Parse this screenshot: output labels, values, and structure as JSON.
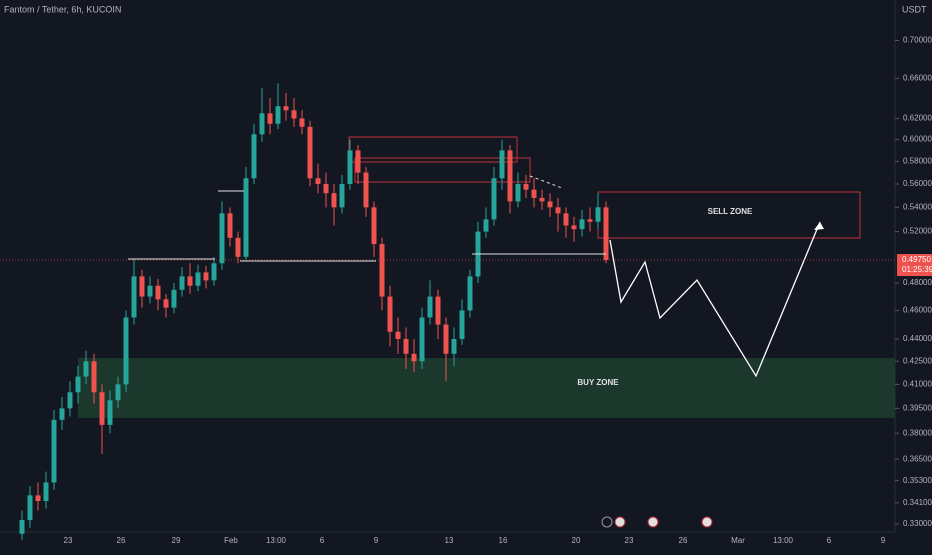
{
  "chart_data": {
    "type": "candlestick",
    "title": "Fantom / Tether, 6h, KUCOIN",
    "y_unit": "USDT",
    "log": true,
    "colors": {
      "up": "#26a69a",
      "down": "#ef5350"
    },
    "ylim": [
      0.3259,
      0.7455
    ],
    "yticks": [
      {
        "value": 0.33,
        "label": "0.33000"
      },
      {
        "value": 0.341,
        "label": "0.34100"
      },
      {
        "value": 0.353,
        "label": "0.35300"
      },
      {
        "value": 0.365,
        "label": "0.36500"
      },
      {
        "value": 0.38,
        "label": "0.38000"
      },
      {
        "value": 0.395,
        "label": "0.39500"
      },
      {
        "value": 0.41,
        "label": "0.41000"
      },
      {
        "value": 0.425,
        "label": "0.42500"
      },
      {
        "value": 0.44,
        "label": "0.44000"
      },
      {
        "value": 0.46,
        "label": "0.46000"
      },
      {
        "value": 0.48,
        "label": "0.48000"
      },
      {
        "value": 0.52,
        "label": "0.52000"
      },
      {
        "value": 0.54,
        "label": "0.54000"
      },
      {
        "value": 0.56,
        "label": "0.56000"
      },
      {
        "value": 0.58,
        "label": "0.58000"
      },
      {
        "value": 0.6,
        "label": "0.60000"
      },
      {
        "value": 0.62,
        "label": "0.62000"
      },
      {
        "value": 0.66,
        "label": "0.66000"
      },
      {
        "value": 0.7,
        "label": "0.70000"
      }
    ],
    "x_labels": [
      "23",
      "26",
      "29",
      "Feb",
      "13:00",
      "6",
      "9",
      "13",
      "16",
      "20",
      "23",
      "26",
      "Mar",
      "13:00",
      "6",
      "9"
    ],
    "open": [
      0.325,
      0.332,
      0.345,
      0.342,
      0.352,
      0.388,
      0.395,
      0.405,
      0.415,
      0.425,
      0.405,
      0.385,
      0.4,
      0.41,
      0.455,
      0.485,
      0.47,
      0.478,
      0.468,
      0.462,
      0.475,
      0.485,
      0.478,
      0.488,
      0.482,
      0.495,
      0.535,
      0.515,
      0.5,
      0.565,
      0.605,
      0.625,
      0.615,
      0.632,
      0.628,
      0.62,
      0.612,
      0.565,
      0.56,
      0.552,
      0.54,
      0.56,
      0.59,
      0.57,
      0.54,
      0.51,
      0.47,
      0.445,
      0.44,
      0.43,
      0.425,
      0.455,
      0.47,
      0.45,
      0.43,
      0.44,
      0.46,
      0.485,
      0.52,
      0.53,
      0.565,
      0.59,
      0.545,
      0.56,
      0.555,
      0.548,
      0.545,
      0.54,
      0.535,
      0.525,
      0.522,
      0.53,
      0.528,
      0.54
    ],
    "high": [
      0.337,
      0.35,
      0.352,
      0.358,
      0.394,
      0.402,
      0.412,
      0.422,
      0.432,
      0.43,
      0.41,
      0.406,
      0.415,
      0.46,
      0.498,
      0.49,
      0.485,
      0.483,
      0.472,
      0.48,
      0.492,
      0.495,
      0.494,
      0.493,
      0.5,
      0.545,
      0.54,
      0.52,
      0.575,
      0.615,
      0.65,
      0.64,
      0.655,
      0.645,
      0.64,
      0.628,
      0.618,
      0.578,
      0.57,
      0.56,
      0.568,
      0.6,
      0.595,
      0.575,
      0.545,
      0.515,
      0.478,
      0.455,
      0.448,
      0.44,
      0.462,
      0.482,
      0.475,
      0.455,
      0.448,
      0.468,
      0.49,
      0.528,
      0.54,
      0.575,
      0.6,
      0.595,
      0.57,
      0.568,
      0.565,
      0.555,
      0.552,
      0.548,
      0.54,
      0.532,
      0.538,
      0.54,
      0.552,
      0.545
    ],
    "low": [
      0.322,
      0.328,
      0.337,
      0.338,
      0.348,
      0.382,
      0.39,
      0.398,
      0.41,
      0.398,
      0.368,
      0.38,
      0.395,
      0.405,
      0.45,
      0.462,
      0.465,
      0.46,
      0.455,
      0.458,
      0.47,
      0.472,
      0.474,
      0.476,
      0.478,
      0.49,
      0.508,
      0.495,
      0.498,
      0.56,
      0.598,
      0.605,
      0.61,
      0.618,
      0.612,
      0.605,
      0.558,
      0.552,
      0.54,
      0.525,
      0.535,
      0.555,
      0.56,
      0.532,
      0.5,
      0.46,
      0.435,
      0.43,
      0.42,
      0.418,
      0.42,
      0.45,
      0.44,
      0.412,
      0.422,
      0.436,
      0.455,
      0.48,
      0.515,
      0.525,
      0.555,
      0.535,
      0.54,
      0.548,
      0.54,
      0.538,
      0.532,
      0.52,
      0.515,
      0.512,
      0.516,
      0.52,
      0.522,
      0.495
    ],
    "close": [
      0.332,
      0.345,
      0.342,
      0.352,
      0.388,
      0.395,
      0.405,
      0.415,
      0.425,
      0.405,
      0.385,
      0.4,
      0.41,
      0.455,
      0.485,
      0.47,
      0.478,
      0.468,
      0.462,
      0.475,
      0.485,
      0.478,
      0.488,
      0.482,
      0.495,
      0.535,
      0.515,
      0.5,
      0.565,
      0.605,
      0.625,
      0.615,
      0.632,
      0.628,
      0.62,
      0.612,
      0.565,
      0.56,
      0.552,
      0.54,
      0.56,
      0.59,
      0.57,
      0.54,
      0.51,
      0.47,
      0.445,
      0.44,
      0.43,
      0.425,
      0.455,
      0.47,
      0.45,
      0.43,
      0.44,
      0.46,
      0.485,
      0.52,
      0.53,
      0.565,
      0.59,
      0.545,
      0.56,
      0.555,
      0.548,
      0.545,
      0.54,
      0.535,
      0.525,
      0.522,
      0.53,
      0.528,
      0.54,
      0.4975
    ],
    "last_price": {
      "value": 0.4975,
      "label": "0.49750"
    },
    "countdown": "01:25:39",
    "annotations": [
      "SELL ZONE",
      "BUY ZONE"
    ]
  }
}
